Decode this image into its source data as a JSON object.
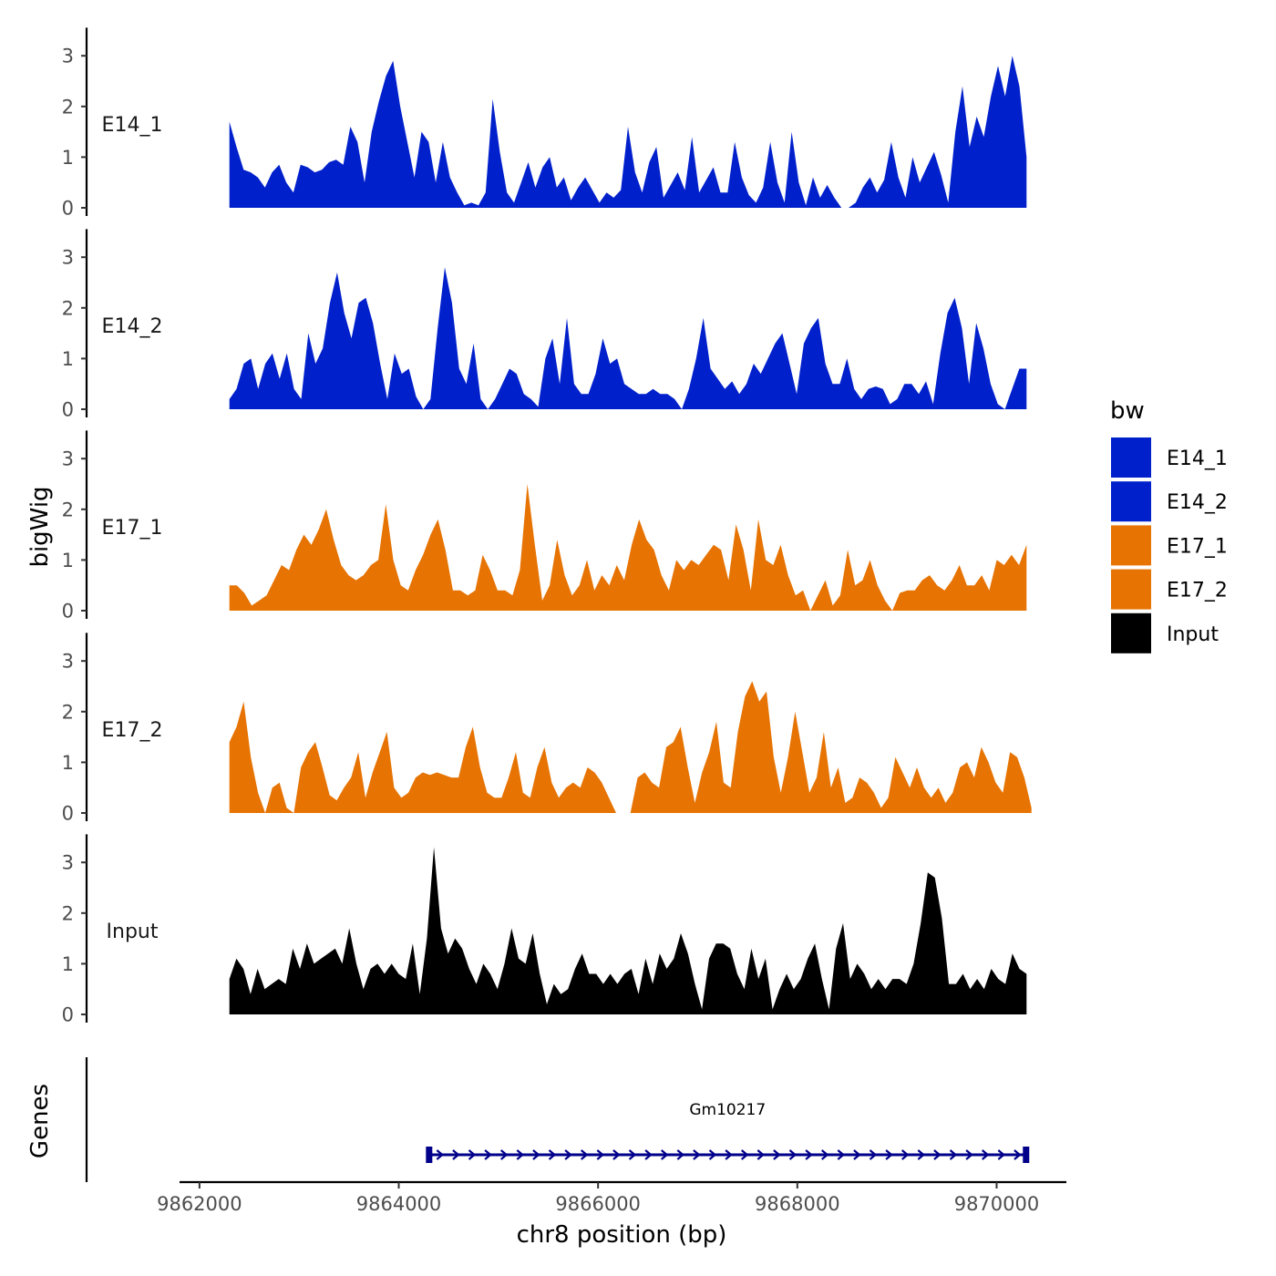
{
  "chart_data": {
    "type": "area",
    "chromosome": "chr8",
    "xlabel": "chr8 position (bp)",
    "ylabel": "bigWig",
    "genes_label": "Genes",
    "xlim": [
      9861800,
      9870700
    ],
    "x_ticks": [
      9862000,
      9864000,
      9866000,
      9868000,
      9870000
    ],
    "x_tick_labels": [
      "9862000",
      "9864000",
      "9866000",
      "9868000",
      "9870000"
    ],
    "ylim": [
      0,
      3.5
    ],
    "y_ticks": [
      0,
      1,
      2,
      3
    ],
    "y_tick_labels": [
      "0",
      "1",
      "2",
      "3"
    ],
    "legend": {
      "title": "bw",
      "entries": [
        {
          "label": "E14_1",
          "color": "#0020CC"
        },
        {
          "label": "E14_2",
          "color": "#0020CC"
        },
        {
          "label": "E17_1",
          "color": "#E67302"
        },
        {
          "label": "E17_2",
          "color": "#E67302"
        },
        {
          "label": "Input",
          "color": "#000000"
        }
      ]
    },
    "series": [
      {
        "name": "E14_1",
        "color": "#0020CC",
        "x_start": 9862300,
        "x_end": 9870300,
        "values": [
          1.7,
          1.2,
          0.75,
          0.7,
          0.6,
          0.4,
          0.7,
          0.85,
          0.5,
          0.3,
          0.85,
          0.8,
          0.7,
          0.75,
          0.9,
          0.95,
          0.85,
          1.6,
          1.3,
          0.5,
          1.5,
          2.1,
          2.6,
          2.9,
          2.0,
          1.3,
          0.6,
          1.5,
          1.3,
          0.5,
          1.3,
          0.6,
          0.3,
          0.05,
          0.1,
          0.05,
          0.3,
          2.15,
          1.1,
          0.3,
          0.1,
          0.5,
          0.9,
          0.4,
          0.8,
          1.0,
          0.4,
          0.6,
          0.15,
          0.4,
          0.6,
          0.35,
          0.1,
          0.3,
          0.2,
          0.35,
          1.6,
          0.7,
          0.3,
          0.9,
          1.2,
          0.2,
          0.45,
          0.7,
          0.35,
          1.4,
          0.3,
          0.55,
          0.8,
          0.3,
          0.3,
          1.3,
          0.6,
          0.25,
          0.1,
          0.4,
          1.3,
          0.5,
          0.1,
          1.5,
          0.5,
          0.05,
          0.6,
          0.2,
          0.45,
          0.2,
          0.0,
          0.0,
          0.1,
          0.4,
          0.6,
          0.3,
          0.55,
          1.3,
          0.6,
          0.2,
          1.0,
          0.5,
          0.8,
          1.1,
          0.65,
          0.1,
          1.5,
          2.4,
          1.2,
          1.8,
          1.4,
          2.2,
          2.8,
          2.2,
          3.0,
          2.4,
          1.0
        ]
      },
      {
        "name": "E14_2",
        "color": "#0020CC",
        "x_start": 9862300,
        "x_end": 9870300,
        "values": [
          0.2,
          0.4,
          0.9,
          1.0,
          0.4,
          0.9,
          1.1,
          0.6,
          1.1,
          0.4,
          0.2,
          1.5,
          0.9,
          1.2,
          2.1,
          2.7,
          1.9,
          1.4,
          2.1,
          2.2,
          1.7,
          0.9,
          0.2,
          1.1,
          0.7,
          0.8,
          0.25,
          0.0,
          0.2,
          1.6,
          2.8,
          2.1,
          0.8,
          0.5,
          1.3,
          0.2,
          0.0,
          0.2,
          0.5,
          0.8,
          0.7,
          0.3,
          0.2,
          0.05,
          1.0,
          1.4,
          0.5,
          1.8,
          0.5,
          0.3,
          0.3,
          0.7,
          1.4,
          0.9,
          1.0,
          0.5,
          0.4,
          0.3,
          0.3,
          0.4,
          0.3,
          0.3,
          0.2,
          0.0,
          0.4,
          1.0,
          1.8,
          0.8,
          0.6,
          0.4,
          0.55,
          0.3,
          0.5,
          0.9,
          0.7,
          1.0,
          1.3,
          1.5,
          0.9,
          0.3,
          1.3,
          1.6,
          1.8,
          0.9,
          0.5,
          0.5,
          1.0,
          0.4,
          0.2,
          0.4,
          0.45,
          0.4,
          0.1,
          0.2,
          0.5,
          0.5,
          0.3,
          0.55,
          0.1,
          1.1,
          1.9,
          2.2,
          1.6,
          0.5,
          1.7,
          1.2,
          0.5,
          0.1,
          0.0,
          0.4,
          0.8,
          0.8
        ]
      },
      {
        "name": "E17_1",
        "color": "#E67302",
        "x_start": 9862300,
        "x_end": 9870300,
        "values": [
          0.5,
          0.5,
          0.35,
          0.1,
          0.2,
          0.3,
          0.6,
          0.9,
          0.8,
          1.2,
          1.5,
          1.3,
          1.6,
          2.0,
          1.4,
          0.9,
          0.7,
          0.6,
          0.7,
          0.9,
          1.0,
          2.1,
          1.0,
          0.5,
          0.4,
          0.8,
          1.1,
          1.5,
          1.8,
          1.2,
          0.4,
          0.4,
          0.3,
          0.4,
          1.1,
          0.8,
          0.4,
          0.4,
          0.3,
          0.8,
          2.5,
          1.3,
          0.2,
          0.5,
          1.4,
          0.7,
          0.3,
          0.5,
          1.0,
          0.4,
          0.7,
          0.5,
          0.9,
          0.6,
          1.3,
          1.8,
          1.4,
          1.2,
          0.7,
          0.4,
          1.0,
          0.8,
          1.0,
          0.9,
          1.1,
          1.3,
          1.2,
          0.6,
          1.7,
          1.2,
          0.4,
          1.8,
          1.0,
          0.9,
          1.3,
          0.7,
          0.3,
          0.4,
          0.0,
          0.3,
          0.6,
          0.1,
          0.3,
          1.2,
          0.5,
          0.6,
          1.0,
          0.5,
          0.2,
          0.0,
          0.35,
          0.4,
          0.4,
          0.6,
          0.7,
          0.5,
          0.4,
          0.6,
          0.9,
          0.5,
          0.5,
          0.7,
          0.4,
          1.0,
          0.9,
          1.1,
          0.9,
          1.3
        ]
      },
      {
        "name": "E17_2",
        "color": "#E67302",
        "x_start": 9862300,
        "x_end": 9870350,
        "values": [
          1.4,
          1.7,
          2.2,
          1.1,
          0.4,
          0.0,
          0.5,
          0.6,
          0.1,
          0.0,
          0.9,
          1.2,
          1.4,
          0.9,
          0.35,
          0.25,
          0.5,
          0.7,
          1.2,
          0.3,
          0.8,
          1.2,
          1.6,
          0.5,
          0.3,
          0.4,
          0.7,
          0.8,
          0.75,
          0.8,
          0.75,
          0.7,
          0.7,
          1.3,
          1.7,
          0.9,
          0.4,
          0.3,
          0.3,
          0.7,
          1.2,
          0.4,
          0.3,
          0.9,
          1.3,
          0.6,
          0.3,
          0.5,
          0.6,
          0.5,
          0.9,
          0.8,
          0.6,
          0.3,
          0.0,
          0.0,
          0.0,
          0.7,
          0.8,
          0.6,
          0.5,
          1.3,
          1.4,
          1.7,
          0.9,
          0.2,
          0.8,
          1.2,
          1.8,
          0.6,
          0.5,
          1.6,
          2.3,
          2.6,
          2.2,
          2.4,
          1.1,
          0.4,
          1.1,
          2.0,
          1.2,
          0.4,
          0.7,
          1.6,
          0.5,
          0.9,
          0.2,
          0.3,
          0.7,
          0.6,
          0.4,
          0.1,
          0.3,
          1.1,
          0.8,
          0.5,
          0.9,
          0.5,
          0.3,
          0.5,
          0.2,
          0.4,
          0.9,
          1.0,
          0.7,
          1.3,
          1.0,
          0.6,
          0.4,
          1.2,
          1.1,
          0.7,
          0.1
        ]
      },
      {
        "name": "Input",
        "color": "#000000",
        "x_start": 9862300,
        "x_end": 9870300,
        "values": [
          0.7,
          1.1,
          0.9,
          0.4,
          0.9,
          0.5,
          0.6,
          0.7,
          0.6,
          1.3,
          0.9,
          1.4,
          1.0,
          1.1,
          1.2,
          1.3,
          1.0,
          1.7,
          1.0,
          0.5,
          0.9,
          1.0,
          0.8,
          1.0,
          0.8,
          0.7,
          1.4,
          0.4,
          1.5,
          3.3,
          1.7,
          1.2,
          1.5,
          1.3,
          0.9,
          0.6,
          1.0,
          0.8,
          0.5,
          1.0,
          1.7,
          1.1,
          1.0,
          1.6,
          0.8,
          0.2,
          0.6,
          0.4,
          0.5,
          0.9,
          1.2,
          0.8,
          0.8,
          0.6,
          0.8,
          0.6,
          0.8,
          0.9,
          0.4,
          1.1,
          0.6,
          1.2,
          0.9,
          1.1,
          1.6,
          1.2,
          0.6,
          0.1,
          1.1,
          1.4,
          1.4,
          1.3,
          0.8,
          0.5,
          1.3,
          0.7,
          1.1,
          0.1,
          0.5,
          0.8,
          0.5,
          0.7,
          1.1,
          1.4,
          0.7,
          0.1,
          1.3,
          1.8,
          0.7,
          1.0,
          0.8,
          0.5,
          0.7,
          0.5,
          0.7,
          0.7,
          0.6,
          1.0,
          1.8,
          2.8,
          2.7,
          1.9,
          0.6,
          0.6,
          0.8,
          0.5,
          0.7,
          0.5,
          0.9,
          0.7,
          0.6,
          1.2,
          0.9,
          0.8
        ]
      }
    ],
    "genes": [
      {
        "name": "Gm10217",
        "start": 9864300,
        "end": 9870300,
        "strand": "+",
        "color": "#00008B"
      }
    ]
  }
}
